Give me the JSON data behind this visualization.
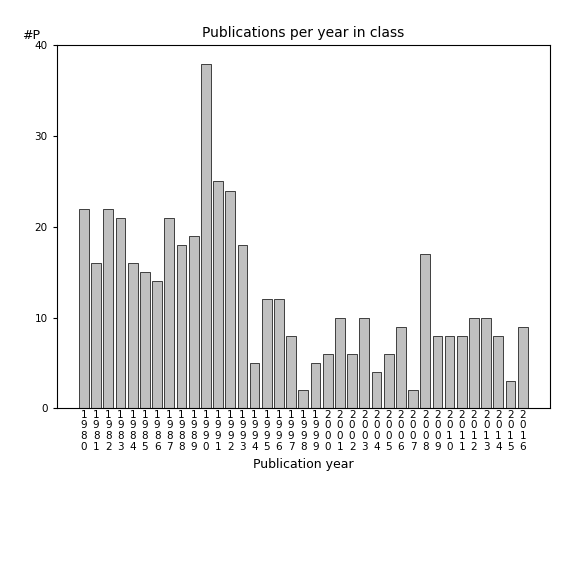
{
  "title": "Publications per year in class",
  "xlabel": "Publication year",
  "ylabel": "#P",
  "years": [
    1980,
    1981,
    1982,
    1983,
    1984,
    1985,
    1986,
    1987,
    1988,
    1989,
    1990,
    1991,
    1992,
    1993,
    1994,
    1995,
    1996,
    1997,
    1998,
    1999,
    2000,
    2001,
    2002,
    2003,
    2004,
    2005,
    2006,
    2007,
    2008,
    2009,
    2010,
    2011,
    2012,
    2013,
    2014,
    2015,
    2016
  ],
  "values": [
    22,
    16,
    22,
    21,
    16,
    15,
    14,
    21,
    18,
    19,
    38,
    25,
    24,
    18,
    5,
    12,
    12,
    8,
    2,
    5,
    6,
    10,
    6,
    10,
    4,
    6,
    9,
    2,
    17,
    8,
    8,
    8,
    10,
    10,
    8,
    3,
    9
  ],
  "bar_color": "#c0c0c0",
  "bar_edgecolor": "#000000",
  "ylim": [
    0,
    40
  ],
  "yticks": [
    0,
    10,
    20,
    30,
    40
  ],
  "background_color": "#ffffff",
  "title_fontsize": 10,
  "label_fontsize": 9,
  "tick_fontsize": 7.5
}
